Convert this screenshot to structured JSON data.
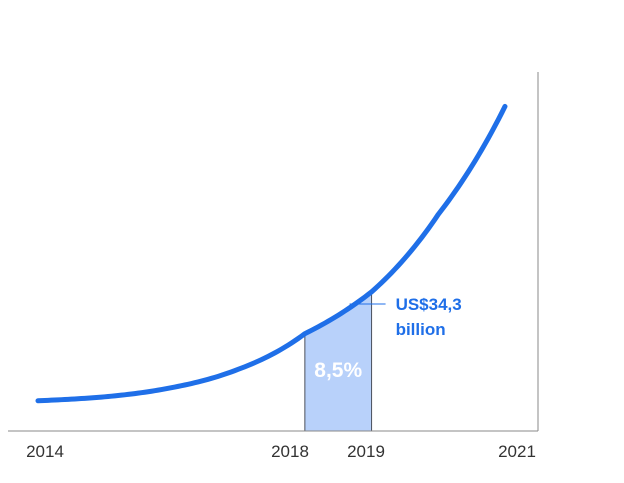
{
  "chart_data": {
    "type": "line",
    "x_ticks": [
      "2014",
      "2018",
      "2019",
      "2021"
    ],
    "xlim": [
      2014,
      2021
    ],
    "series": [
      {
        "x": [
          2014,
          2015,
          2016,
          2017,
          2018,
          2019,
          2020,
          2021
        ],
        "values": [
          1.0,
          2.2,
          5.0,
          10.6,
          21.5,
          34.3,
          58.0,
          91.0
        ]
      }
    ],
    "ylim": [
      0,
      100
    ],
    "grid": false,
    "highlight_band": {
      "x_start": 2018,
      "x_end": 2019,
      "label": "8,5%",
      "color": "#b8d1fa"
    },
    "annotation": {
      "x": 2019,
      "value": 34.3,
      "line1": "US$34,3",
      "line2": "billion"
    },
    "colors": {
      "line": "#1f6fe8",
      "annotation_text": "#1f6fe8",
      "band_fill": "#b8d1fa",
      "band_label": "#ffffff",
      "axis": "#888888"
    }
  }
}
